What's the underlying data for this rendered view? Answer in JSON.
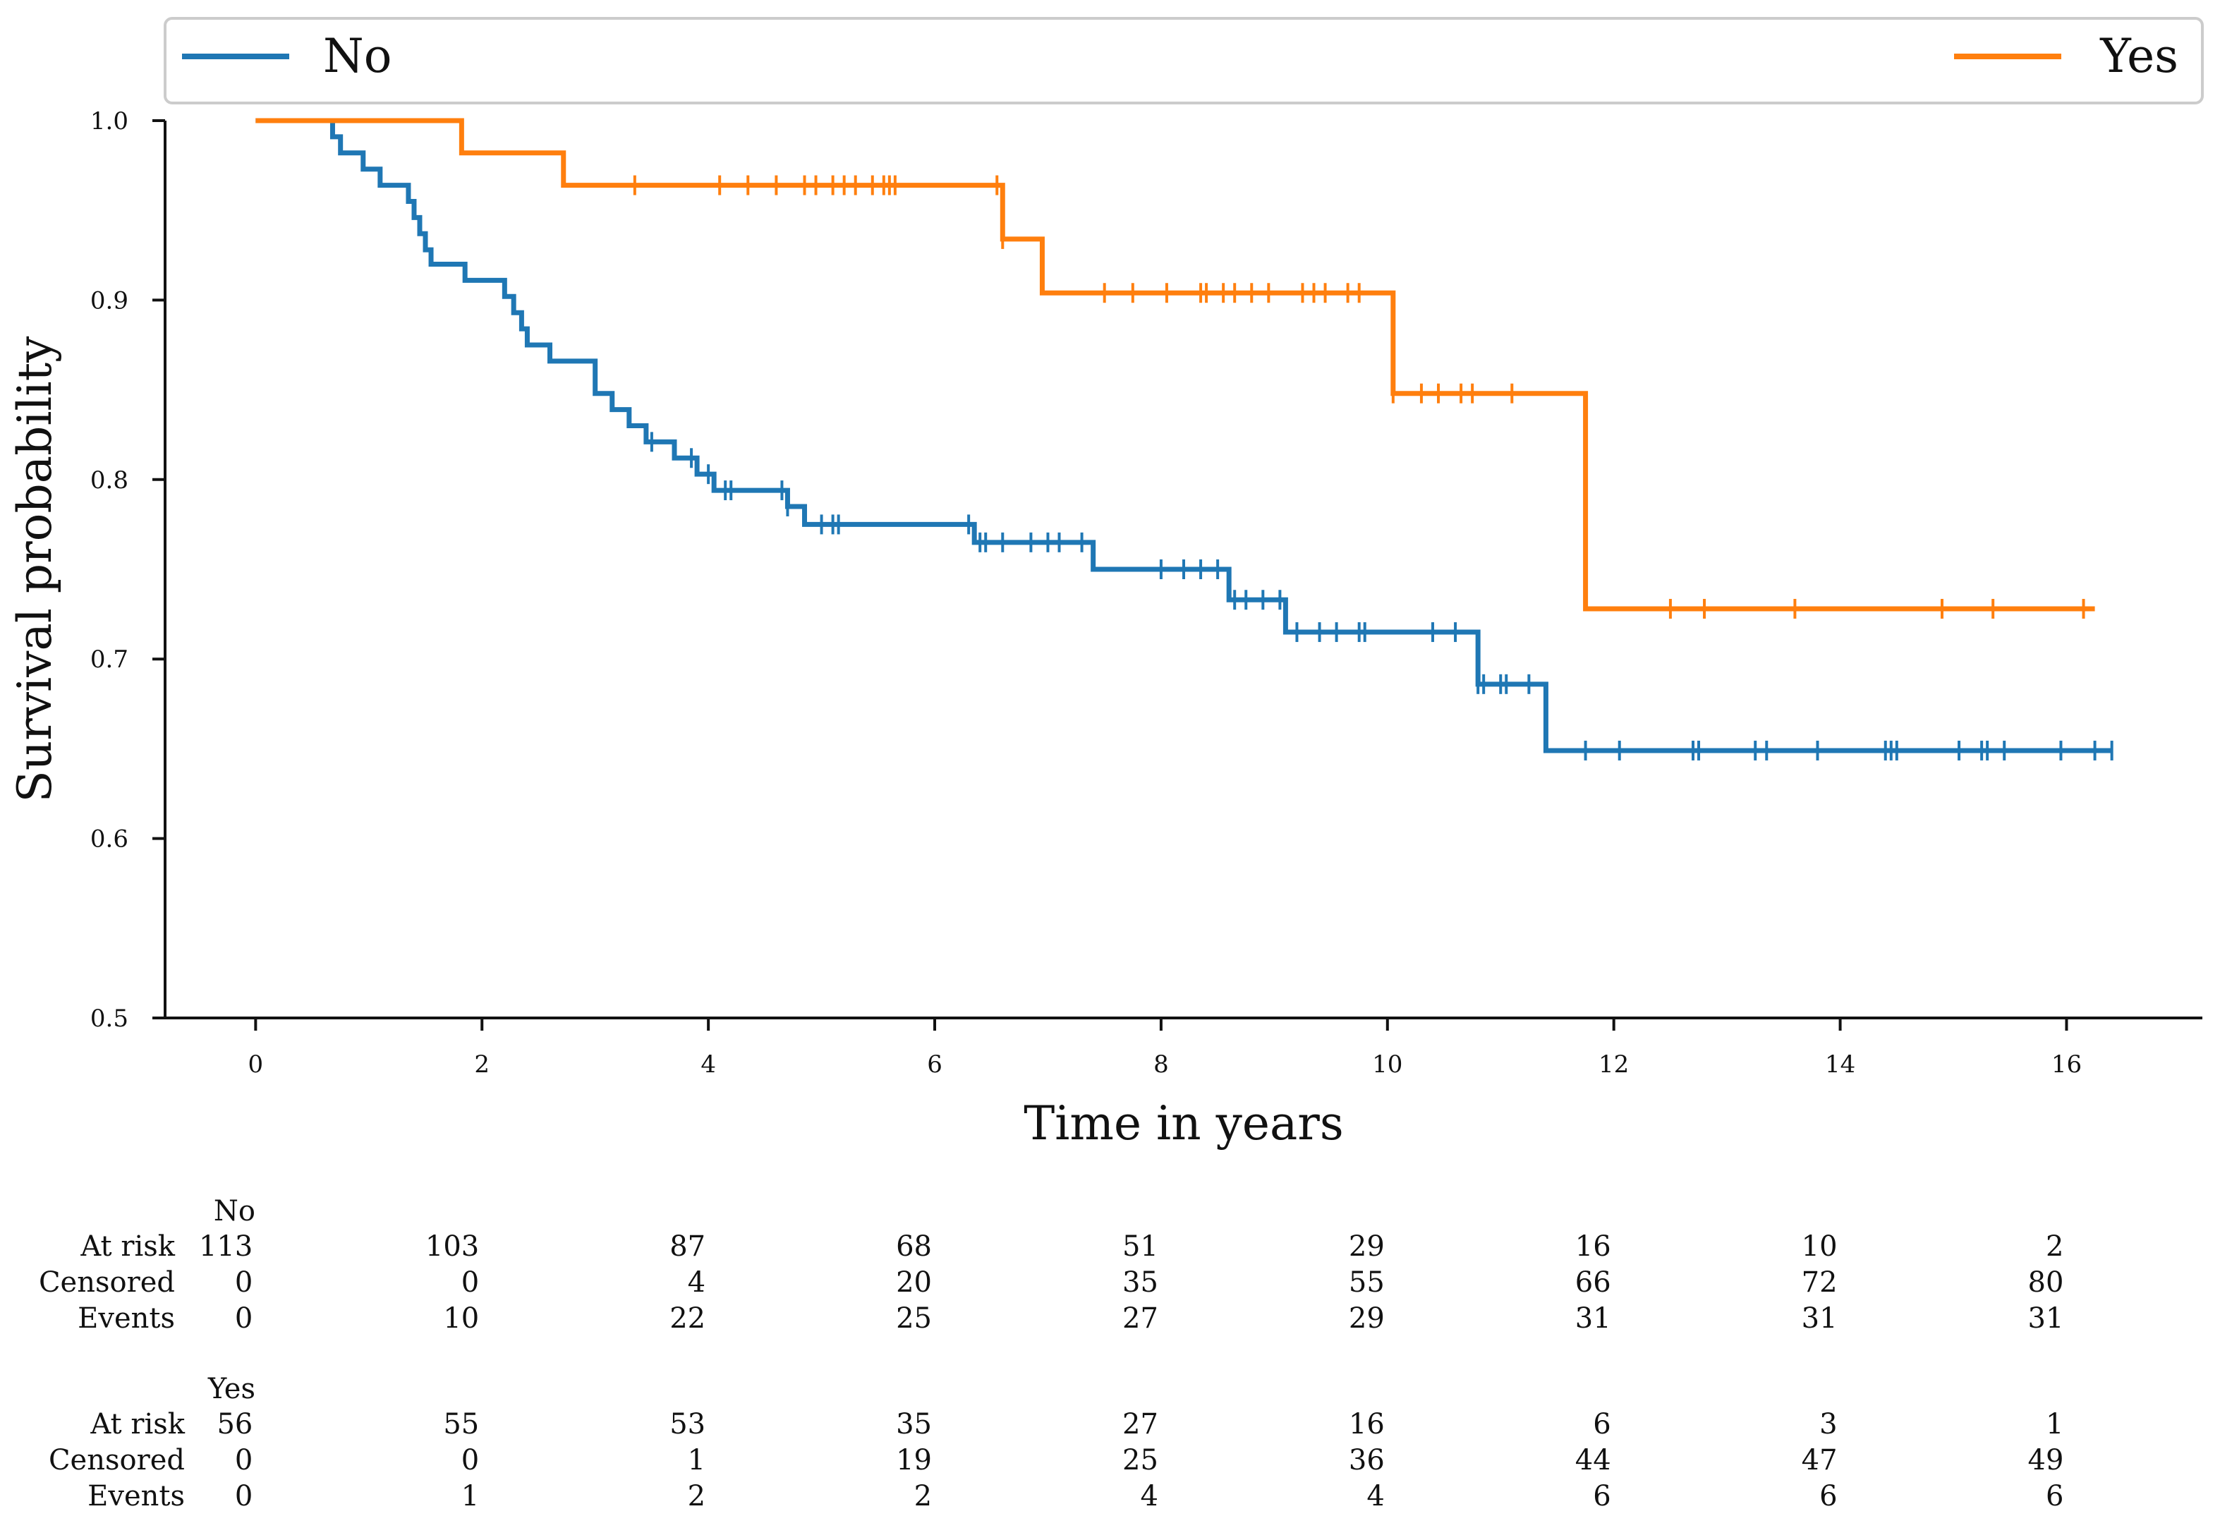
{
  "chart_data": {
    "type": "line",
    "subtype": "kaplan-meier-step",
    "xlabel": "Time in years",
    "ylabel": "Survival probability",
    "xlim": [
      -0.8,
      17.2
    ],
    "ylim": [
      0.5,
      1.0
    ],
    "xticks": [
      "0",
      "2",
      "4",
      "6",
      "8",
      "10",
      "12",
      "14",
      "16"
    ],
    "yticks": [
      "0.5",
      "0.6",
      "0.7",
      "0.8",
      "0.9",
      "1.0"
    ],
    "legend": {
      "placement": "top",
      "entries": [
        "No",
        "Yes"
      ]
    },
    "series": [
      {
        "name": "No",
        "color": "#1f77b4",
        "steps": [
          [
            0,
            1.0
          ],
          [
            0.68,
            0.991
          ],
          [
            0.75,
            0.982
          ],
          [
            0.95,
            0.973
          ],
          [
            1.1,
            0.964
          ],
          [
            1.35,
            0.955
          ],
          [
            1.4,
            0.946
          ],
          [
            1.45,
            0.937
          ],
          [
            1.5,
            0.928
          ],
          [
            1.55,
            0.92
          ],
          [
            1.85,
            0.911
          ],
          [
            2.2,
            0.902
          ],
          [
            2.28,
            0.893
          ],
          [
            2.35,
            0.884
          ],
          [
            2.4,
            0.875
          ],
          [
            2.6,
            0.866
          ],
          [
            3.0,
            0.848
          ],
          [
            3.15,
            0.839
          ],
          [
            3.3,
            0.83
          ],
          [
            3.45,
            0.821
          ],
          [
            3.7,
            0.812
          ],
          [
            3.9,
            0.803
          ],
          [
            4.05,
            0.794
          ],
          [
            4.7,
            0.785
          ],
          [
            4.85,
            0.775
          ],
          [
            6.35,
            0.765
          ],
          [
            7.4,
            0.75
          ],
          [
            8.6,
            0.733
          ],
          [
            9.1,
            0.715
          ],
          [
            10.8,
            0.686
          ],
          [
            11.4,
            0.649
          ],
          [
            16.4,
            0.649
          ]
        ],
        "censored": [
          3.5,
          3.85,
          4.0,
          4.15,
          4.2,
          4.65,
          4.7,
          5.0,
          5.1,
          5.15,
          6.3,
          6.4,
          6.45,
          6.6,
          6.85,
          7.0,
          7.1,
          7.3,
          8.0,
          8.2,
          8.35,
          8.5,
          8.65,
          8.75,
          8.9,
          9.05,
          9.2,
          9.4,
          9.55,
          9.75,
          9.8,
          10.4,
          10.6,
          10.8,
          10.85,
          11.0,
          11.05,
          11.25,
          11.75,
          12.05,
          12.7,
          12.75,
          13.25,
          13.35,
          13.8,
          14.4,
          14.45,
          14.5,
          15.05,
          15.25,
          15.3,
          15.45,
          15.95,
          16.25,
          16.4
        ]
      },
      {
        "name": "Yes",
        "color": "#ff7f0e",
        "steps": [
          [
            0,
            1.0
          ],
          [
            1.82,
            0.982
          ],
          [
            2.72,
            0.964
          ],
          [
            6.6,
            0.934
          ],
          [
            6.95,
            0.904
          ],
          [
            10.05,
            0.848
          ],
          [
            11.75,
            0.728
          ],
          [
            16.25,
            0.728
          ]
        ],
        "censored": [
          3.35,
          4.1,
          4.35,
          4.6,
          4.85,
          4.95,
          5.1,
          5.2,
          5.3,
          5.45,
          5.55,
          5.6,
          5.65,
          6.55,
          6.6,
          7.5,
          7.75,
          8.05,
          8.35,
          8.4,
          8.55,
          8.65,
          8.8,
          8.95,
          9.25,
          9.35,
          9.45,
          9.65,
          9.75,
          10.05,
          10.3,
          10.45,
          10.65,
          10.75,
          11.1,
          12.5,
          12.8,
          13.6,
          14.9,
          15.35,
          16.15
        ]
      }
    ],
    "risk_table": {
      "columns_x": [
        0,
        2,
        4,
        6,
        8,
        10,
        12,
        14,
        16
      ],
      "groups": [
        {
          "name": "No",
          "rows": [
            {
              "label": "At risk",
              "values": [
                "113",
                "103",
                "87",
                "68",
                "51",
                "29",
                "16",
                "10",
                "2"
              ]
            },
            {
              "label": "Censored",
              "values": [
                "0",
                "0",
                "4",
                "20",
                "35",
                "55",
                "66",
                "72",
                "80"
              ]
            },
            {
              "label": "Events",
              "values": [
                "0",
                "10",
                "22",
                "25",
                "27",
                "29",
                "31",
                "31",
                "31"
              ]
            }
          ]
        },
        {
          "name": "Yes",
          "rows": [
            {
              "label": "At risk",
              "values": [
                "56",
                "55",
                "53",
                "35",
                "27",
                "16",
                "6",
                "3",
                "1"
              ]
            },
            {
              "label": "Censored",
              "values": [
                "0",
                "0",
                "1",
                "19",
                "25",
                "36",
                "44",
                "47",
                "49"
              ]
            },
            {
              "label": "Events",
              "values": [
                "0",
                "1",
                "2",
                "2",
                "4",
                "4",
                "6",
                "6",
                "6"
              ]
            }
          ]
        }
      ]
    }
  }
}
